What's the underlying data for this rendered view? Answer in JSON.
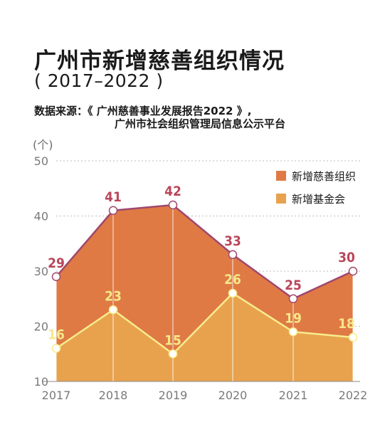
{
  "title": "广州市新增慈善组织情况",
  "subtitle": "( 2017–2022 )",
  "source_line1": "数据来源：《 广州慈善事业发展报告2022 》,",
  "source_line2": "广州市社会组织管理局信息公示平台",
  "unit_label": "(个)",
  "colors": {
    "org_fill": "#df7a45",
    "org_line": "#a0476d",
    "fund_fill": "#e8a24e",
    "fund_line": "#f7ec8c",
    "org_label": "#b9465a",
    "fund_label": "#f5e889",
    "grid": "#bdbdbd"
  },
  "chart_data": {
    "type": "area",
    "x": [
      "2017",
      "2018",
      "2019",
      "2020",
      "2021",
      "2022"
    ],
    "ylim": [
      10,
      50
    ],
    "yticks": [
      10,
      20,
      30,
      40,
      50
    ],
    "legend_position": "top-right",
    "series": [
      {
        "name": "新增慈善组织",
        "values": [
          29,
          41,
          42,
          33,
          25,
          30
        ]
      },
      {
        "name": "新增基金会",
        "values": [
          16,
          23,
          15,
          26,
          19,
          18
        ]
      }
    ]
  }
}
